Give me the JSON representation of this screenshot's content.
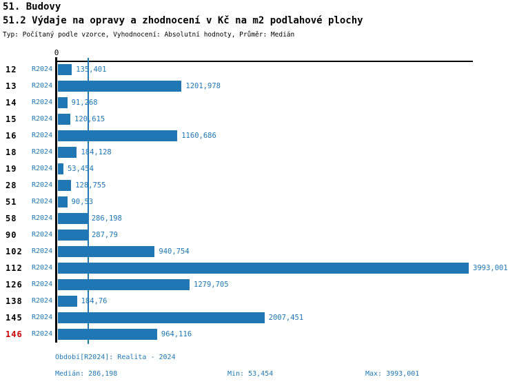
{
  "header": {
    "title": "51. Budovy",
    "subtitle": "51.2 Výdaje na opravy a zhodnocení v Kč na m2 podlahové plochy",
    "meta": "Typ: Počítaný podle vzorce, Vyhodnocení: Absolutní hodnoty, Průměr: Medián"
  },
  "chart_data": {
    "type": "bar",
    "orientation": "horizontal",
    "title": "51.2 Výdaje na opravy a zhodnocení v Kč na m2 podlahové plochy",
    "axis_zero_label": "0",
    "series_label": "R2024",
    "categories": [
      "12",
      "13",
      "14",
      "15",
      "16",
      "18",
      "19",
      "28",
      "51",
      "58",
      "90",
      "102",
      "112",
      "126",
      "138",
      "145",
      "146"
    ],
    "values": [
      135.401,
      1201.978,
      91.268,
      120.615,
      1160.686,
      184.128,
      53.454,
      128.755,
      90.53,
      286.198,
      287.79,
      940.754,
      3993.001,
      1279.705,
      184.76,
      2007.451,
      964.116
    ],
    "value_labels": [
      "135,401",
      "1201,978",
      "91,268",
      "120,615",
      "1160,686",
      "184,128",
      "53,454",
      "128,755",
      "90,53",
      "286,198",
      "287,79",
      "940,754",
      "3993,001",
      "1279,705",
      "184,76",
      "2007,451",
      "964,116"
    ],
    "highlighted_category": "146",
    "median_value": 286.198,
    "xlim": [
      0,
      4000
    ],
    "grid": false,
    "bar_color": "#1f77b4",
    "highlight_color": "#cc0000",
    "axis_color": "#000000"
  },
  "footer": {
    "period": "Období[R2024]: Realita - 2024",
    "median": "Medián: 286,198",
    "min": "Min: 53,454",
    "max": "Max: 3993,001"
  }
}
